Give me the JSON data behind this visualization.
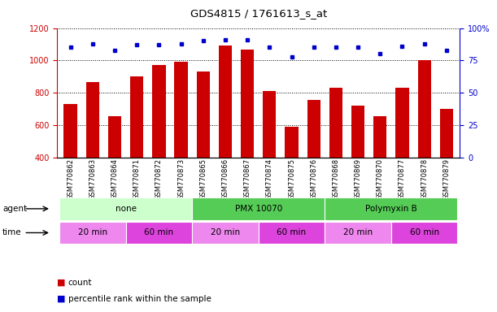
{
  "title": "GDS4815 / 1761613_s_at",
  "samples": [
    "GSM770862",
    "GSM770863",
    "GSM770864",
    "GSM770871",
    "GSM770872",
    "GSM770873",
    "GSM770865",
    "GSM770866",
    "GSM770867",
    "GSM770874",
    "GSM770875",
    "GSM770876",
    "GSM770868",
    "GSM770869",
    "GSM770870",
    "GSM770877",
    "GSM770878",
    "GSM770879"
  ],
  "counts": [
    730,
    865,
    655,
    900,
    970,
    990,
    930,
    1090,
    1065,
    810,
    590,
    755,
    830,
    720,
    655,
    830,
    1000,
    700
  ],
  "percentiles": [
    85,
    88,
    83,
    87,
    87,
    88,
    90,
    91,
    91,
    85,
    78,
    85,
    85,
    85,
    80,
    86,
    88,
    83
  ],
  "ylim_left": [
    400,
    1200
  ],
  "ylim_right": [
    0,
    100
  ],
  "yticks_left": [
    400,
    600,
    800,
    1000,
    1200
  ],
  "yticks_right": [
    0,
    25,
    50,
    75,
    100
  ],
  "bar_color": "#cc0000",
  "dot_color": "#0000cc",
  "agent_groups": [
    {
      "label": "none",
      "start": 0,
      "end": 6,
      "color": "#ccffcc"
    },
    {
      "label": "PMX 10070",
      "start": 6,
      "end": 12,
      "color": "#55cc55"
    },
    {
      "label": "Polymyxin B",
      "start": 12,
      "end": 18,
      "color": "#55cc55"
    }
  ],
  "time_groups": [
    {
      "label": "20 min",
      "start": 0,
      "end": 3,
      "color": "#ee88ee"
    },
    {
      "label": "60 min",
      "start": 3,
      "end": 6,
      "color": "#ee44ee"
    },
    {
      "label": "20 min",
      "start": 6,
      "end": 9,
      "color": "#ee88ee"
    },
    {
      "label": "60 min",
      "start": 9,
      "end": 12,
      "color": "#ee44ee"
    },
    {
      "label": "20 min",
      "start": 12,
      "end": 15,
      "color": "#ee88ee"
    },
    {
      "label": "60 min",
      "start": 15,
      "end": 18,
      "color": "#ee44ee"
    }
  ],
  "legend_count_color": "#cc0000",
  "legend_dot_color": "#0000cc",
  "tick_label_color_left": "#cc0000",
  "tick_label_color_right": "#0000cc"
}
